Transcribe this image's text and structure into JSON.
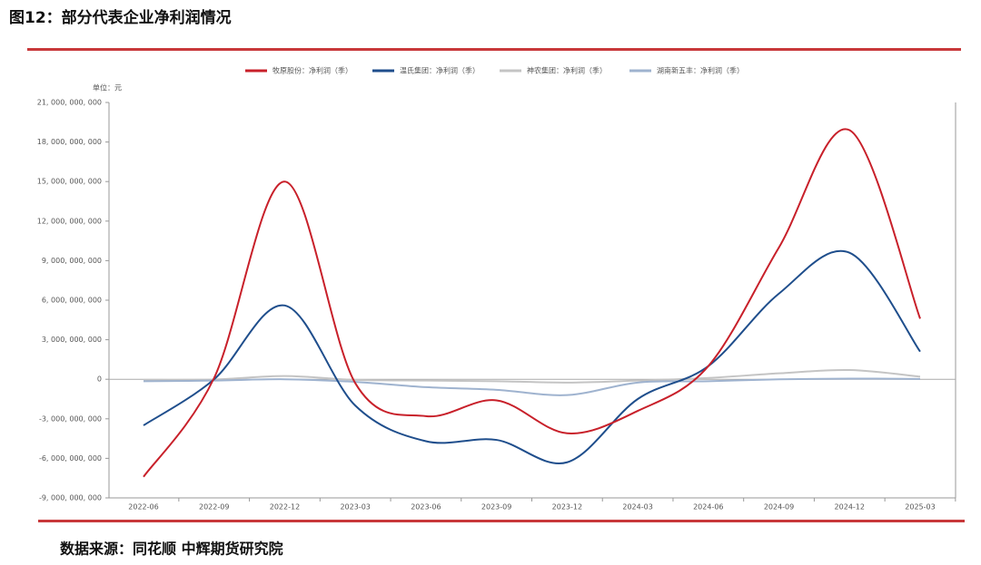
{
  "title": "图12：部分代表企业净利润情况",
  "source": "数据来源：同花顺 中辉期货研究院",
  "chart_data": {
    "type": "line",
    "unit_label": "单位：元",
    "categories": [
      "2022-06",
      "2022-09",
      "2022-12",
      "2023-03",
      "2023-06",
      "2023-09",
      "2023-12",
      "2024-03",
      "2024-06",
      "2024-09",
      "2024-12",
      "2025-03"
    ],
    "series": [
      {
        "name": "牧原股份：净利润（季）",
        "color": "#c8202a",
        "values": [
          -7400000000,
          100000000,
          15000000000,
          -300000000,
          -2800000000,
          -1600000000,
          -4100000000,
          -2400000000,
          1000000000,
          10000000000,
          18900000000,
          4600000000
        ]
      },
      {
        "name": "温氏集团：净利润（季）",
        "color": "#1f4e8c",
        "values": [
          -3500000000,
          0,
          5600000000,
          -2000000000,
          -4700000000,
          -4600000000,
          -6300000000,
          -1500000000,
          1000000000,
          6500000000,
          9600000000,
          2100000000
        ]
      },
      {
        "name": "神农集团：净利润（季）",
        "color": "#c4c4c4",
        "values": [
          -50000000,
          -20000000,
          250000000,
          -50000000,
          -100000000,
          -150000000,
          -250000000,
          -100000000,
          100000000,
          450000000,
          700000000,
          200000000
        ]
      },
      {
        "name": "湖南新五丰：净利润（季）",
        "color": "#9fb3cf",
        "values": [
          -150000000,
          -100000000,
          0,
          -200000000,
          -600000000,
          -800000000,
          -1200000000,
          -250000000,
          -150000000,
          0,
          50000000,
          20000000
        ]
      }
    ],
    "ylim": [
      -9000000000,
      21000000000
    ],
    "yticks": [
      {
        "value": -9000000000,
        "label": "-9, 000, 000, 000"
      },
      {
        "value": -6000000000,
        "label": "-6, 000, 000, 000"
      },
      {
        "value": -3000000000,
        "label": "-3, 000, 000, 000"
      },
      0,
      {
        "value": 3000000000,
        "label": "3, 000, 000, 000"
      },
      {
        "value": 6000000000,
        "label": "6, 000, 000, 000"
      },
      {
        "value": 9000000000,
        "label": "9, 000, 000, 000"
      },
      {
        "value": 12000000000,
        "label": "12, 000, 000, 000"
      },
      {
        "value": 15000000000,
        "label": "15, 000, 000, 000"
      },
      {
        "value": 18000000000,
        "label": "18, 000, 000, 000"
      },
      {
        "value": 21000000000,
        "label": "21, 000, 000, 000"
      }
    ]
  }
}
